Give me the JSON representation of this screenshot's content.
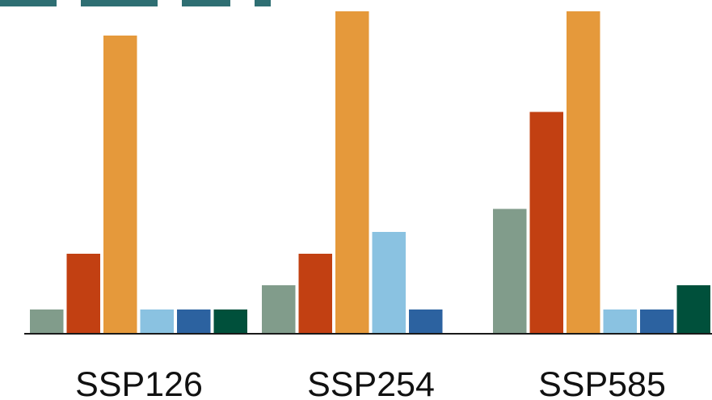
{
  "chart_data": {
    "type": "bar",
    "title": "",
    "xlabel": "",
    "ylabel": "",
    "categories": [
      "SSP126",
      "SSP254",
      "SSP585"
    ],
    "ylim": [
      0,
      13.3
    ],
    "legend": "none",
    "grid": false,
    "series_colors": [
      "#819c8b",
      "#c24012",
      "#e5993b",
      "#8ac2e1",
      "#2c62a0",
      "#00503b"
    ],
    "bars": [
      [
        1,
        3.3,
        12.3,
        1,
        1,
        1
      ],
      [
        2,
        3.3,
        13.3,
        4.2,
        1
      ],
      [
        5.15,
        9.15,
        13.3,
        1,
        1,
        2
      ]
    ]
  }
}
